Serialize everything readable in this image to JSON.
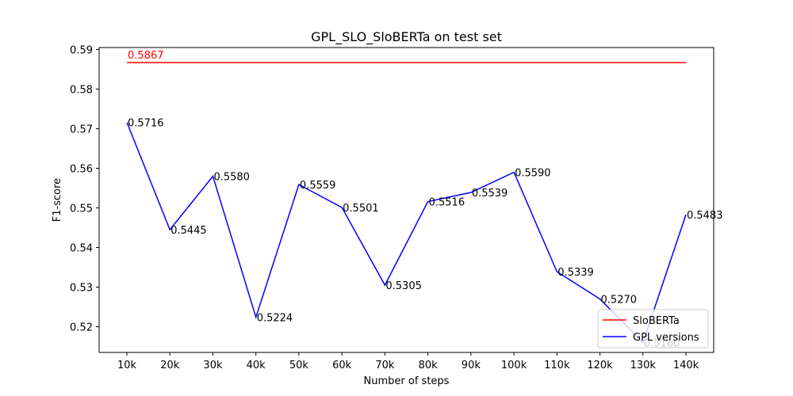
{
  "chart_data": {
    "type": "line",
    "title": "GPL_SLO_SloBERTa on test set",
    "xlabel": "Number of steps",
    "ylabel": "F1-score",
    "categories": [
      "10k",
      "20k",
      "30k",
      "40k",
      "50k",
      "60k",
      "70k",
      "80k",
      "90k",
      "100k",
      "110k",
      "120k",
      "130k",
      "140k"
    ],
    "ylim": [
      0.5135,
      0.5905
    ],
    "yticks": [
      "0.52",
      "0.53",
      "0.54",
      "0.55",
      "0.56",
      "0.57",
      "0.58",
      "0.59"
    ],
    "grid": false,
    "legend_position": "bottom-right",
    "series": [
      {
        "name": "SloBERTa",
        "color": "#ff0000",
        "values": [
          0.5867,
          0.5867,
          0.5867,
          0.5867,
          0.5867,
          0.5867,
          0.5867,
          0.5867,
          0.5867,
          0.5867,
          0.5867,
          0.5867,
          0.5867,
          0.5867
        ],
        "labels": [
          {
            "index": 0,
            "text": "0.5867"
          }
        ]
      },
      {
        "name": "GPL versions",
        "color": "#0000ff",
        "values": [
          0.5716,
          0.5445,
          0.558,
          0.5224,
          0.5559,
          0.5501,
          0.5305,
          0.5516,
          0.5539,
          0.559,
          0.5339,
          0.527,
          0.516,
          0.5483
        ],
        "labels": [
          {
            "index": 0,
            "text": "0.5716"
          },
          {
            "index": 1,
            "text": "0.5445"
          },
          {
            "index": 2,
            "text": "0.5580"
          },
          {
            "index": 3,
            "text": "0.5224"
          },
          {
            "index": 4,
            "text": "0.5559"
          },
          {
            "index": 5,
            "text": "0.5501"
          },
          {
            "index": 6,
            "text": "0.5305"
          },
          {
            "index": 7,
            "text": "0.5516"
          },
          {
            "index": 8,
            "text": "0.5539"
          },
          {
            "index": 9,
            "text": "0.5590"
          },
          {
            "index": 10,
            "text": "0.5339"
          },
          {
            "index": 11,
            "text": "0.5270"
          },
          {
            "index": 12,
            "text": "0.5160"
          },
          {
            "index": 13,
            "text": "0.5483"
          }
        ]
      }
    ]
  }
}
